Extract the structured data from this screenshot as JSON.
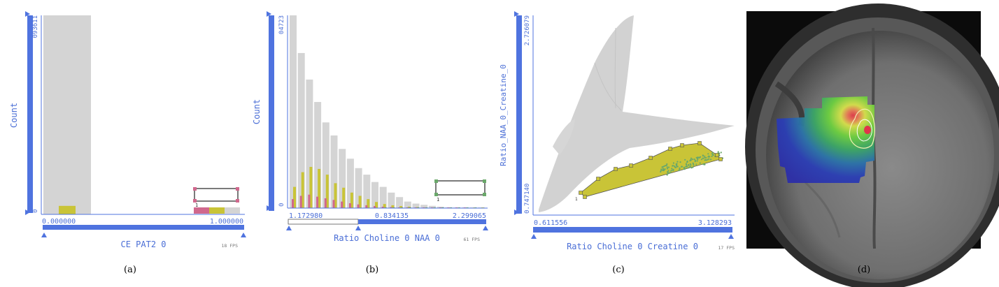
{
  "colors": {
    "axis_blue": "#4f73df",
    "label_blue": "#4a6ed6",
    "bar_gray": "#d4d4d4",
    "yellow": "#c9c437",
    "pink": "#d0688d",
    "green": "#6aa86a",
    "selection_dark": "#333333"
  },
  "panels": {
    "a": {
      "caption": "(a)",
      "ylabel": "Count",
      "ymax_label": "093611",
      "ymin_label": "0",
      "xmin_label": "0.000000",
      "xmax_label": "1.000000",
      "xlabel": "CE PAT2 0",
      "fps": "18 FPS",
      "selection_index": "1"
    },
    "b": {
      "caption": "(b)",
      "ylabel": "Count",
      "ymax_label": "04723",
      "ymin_label": "0",
      "xmin_label": "1.172980",
      "xmid_label": "0.834135",
      "xmax_label": "2.299065",
      "xlabel": "Ratio Choline 0 NAA 0",
      "fps": "61 FPS",
      "selection_index": "1"
    },
    "c": {
      "caption": "(c)",
      "ylabel": "Ratio_NAA_0_Creatine_0",
      "ymax_label": "2.726079",
      "ymin_label": "0.747140",
      "xmin_label": "0.611556",
      "xmax_label": "3.128293",
      "xlabel": "Ratio Choline 0 Creatine 0",
      "fps": "17 FPS",
      "selection_index": "1"
    },
    "d": {
      "caption": "(d)"
    }
  },
  "chart_data": [
    {
      "type": "bar",
      "panel": "a",
      "xlabel": "CE PAT2 0",
      "ylabel": "Count",
      "ylim": [
        0,
        93611
      ],
      "xlim": [
        0,
        1
      ],
      "series": [
        {
          "values": [
            93611,
            0,
            0,
            0,
            0,
            0,
            0,
            0,
            0,
            0
          ]
        },
        {
          "values": [
            4000,
            0,
            0,
            0,
            0,
            0,
            0,
            0,
            0,
            0
          ]
        }
      ]
    },
    {
      "type": "bar",
      "panel": "b",
      "xlabel": "Ratio Choline 0 NAA 0",
      "ylabel": "Count",
      "ylim": [
        0,
        4723
      ],
      "series": [
        {
          "values": [
            4723,
            3800,
            3150,
            2600,
            2100,
            1780,
            1450,
            1210,
            980,
            820,
            640,
            520,
            380,
            270,
            160,
            110,
            80,
            55,
            35,
            20,
            12,
            8,
            5,
            3
          ]
        },
        {
          "values": [
            520,
            880,
            1010,
            960,
            820,
            610,
            500,
            380,
            300,
            220,
            150,
            100,
            70,
            50,
            35,
            25,
            18,
            12,
            8,
            5,
            3,
            2,
            1,
            1
          ]
        },
        {
          "values": [
            220,
            300,
            330,
            280,
            240,
            200,
            160,
            120,
            90,
            70,
            50,
            35,
            25,
            18,
            12,
            9,
            7,
            5,
            3,
            2,
            1,
            1,
            0,
            0
          ]
        },
        {
          "values": [
            0,
            0,
            0,
            0,
            0,
            0,
            0,
            0,
            0,
            0,
            0,
            5,
            6,
            6,
            5,
            5,
            4,
            3,
            3,
            2,
            2,
            1,
            1,
            0
          ]
        }
      ]
    },
    {
      "type": "scatter",
      "panel": "c",
      "xlabel": "Ratio Choline 0 Creatine 0",
      "ylabel": "Ratio_NAA_0_Creatine_0",
      "xlim": [
        0.611556,
        3.128293
      ],
      "ylim": [
        0.74714,
        2.726079
      ]
    }
  ]
}
